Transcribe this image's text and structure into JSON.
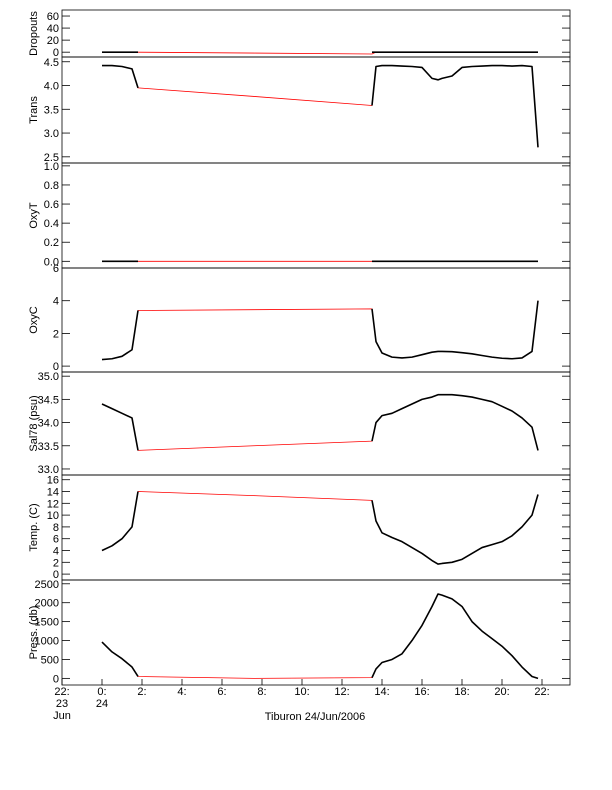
{
  "chart_data": [
    {
      "type": "line",
      "ylabel": "Dropouts",
      "xlim": [
        -2,
        23.4
      ],
      "ylim": [
        -8,
        70
      ],
      "yticks": [
        0,
        20,
        40,
        60
      ],
      "x": [
        0,
        0.5,
        1,
        1.5,
        1.8,
        7.6,
        13.5,
        13.7,
        14,
        14.5,
        15,
        15.5,
        16,
        16.5,
        16.8,
        17,
        17.5,
        18,
        18.5,
        19,
        19.5,
        20,
        20.5,
        21,
        21.5,
        21.8
      ],
      "series": [
        {
          "color": "#ff0000",
          "values": [
            0,
            0,
            0,
            0,
            0,
            -1.5,
            -3,
            0,
            0,
            0,
            0,
            0,
            0,
            0,
            0,
            0,
            0,
            0,
            0,
            0,
            0,
            0,
            0,
            0,
            0,
            0
          ]
        },
        {
          "color": "#000000",
          "values": [
            0,
            0,
            0,
            0,
            0,
            null,
            0,
            0,
            0,
            0,
            0,
            0,
            0,
            0,
            0,
            0,
            0,
            0,
            0,
            0,
            0,
            0,
            0,
            0,
            0,
            0
          ]
        }
      ]
    },
    {
      "type": "line",
      "ylabel": "Trans",
      "xlim": [
        -2,
        23.4
      ],
      "ylim": [
        2.37,
        4.6
      ],
      "yticks": [
        2.5,
        {
          "value": 3,
          "label": "3.0"
        },
        3.5,
        {
          "value": 4,
          "label": "4.0"
        },
        4.5
      ],
      "x": [
        0,
        0.5,
        1,
        1.5,
        1.8,
        7.6,
        13.5,
        13.7,
        14,
        14.5,
        15,
        15.5,
        16,
        16.5,
        16.8,
        17,
        17.5,
        18,
        18.5,
        19,
        19.5,
        20,
        20.5,
        21,
        21.5,
        21.8
      ],
      "series": [
        {
          "color": "#ff0000",
          "values": [
            4.42,
            4.42,
            4.4,
            4.35,
            3.95,
            3.77,
            3.58,
            4.4,
            4.42,
            4.42,
            4.41,
            4.4,
            4.38,
            4.15,
            4.12,
            4.15,
            4.2,
            4.38,
            4.4,
            4.41,
            4.42,
            4.42,
            4.41,
            4.42,
            4.4,
            2.7
          ]
        },
        {
          "color": "#000000",
          "values": [
            4.42,
            4.42,
            4.4,
            4.35,
            3.95,
            null,
            3.58,
            4.4,
            4.42,
            4.42,
            4.41,
            4.4,
            4.38,
            4.15,
            4.12,
            4.15,
            4.2,
            4.38,
            4.4,
            4.41,
            4.42,
            4.42,
            4.41,
            4.42,
            4.4,
            2.7
          ]
        }
      ]
    },
    {
      "type": "line",
      "ylabel": "OxyT",
      "xlim": [
        -2,
        23.4
      ],
      "ylim": [
        -0.07,
        1.03
      ],
      "yticks": [
        {
          "value": 0,
          "label": "0.0"
        },
        0.2,
        0.4,
        0.6,
        0.8,
        {
          "value": 1,
          "label": "1.0"
        }
      ],
      "x": [
        0,
        0.5,
        1,
        1.5,
        1.8,
        7.6,
        13.5,
        13.7,
        14,
        14.5,
        15,
        15.5,
        16,
        16.5,
        16.8,
        17,
        17.5,
        18,
        18.5,
        19,
        19.5,
        20,
        20.5,
        21,
        21.5,
        21.8
      ],
      "series": [
        {
          "color": "#ff0000",
          "values": [
            0,
            0,
            0,
            0,
            0,
            0,
            0,
            0,
            0,
            0,
            0,
            0,
            0,
            0,
            0,
            0,
            0,
            0,
            0,
            0,
            0,
            0,
            0,
            0,
            0,
            0
          ]
        },
        {
          "color": "#000000",
          "values": [
            0,
            0,
            0,
            0,
            0,
            null,
            0,
            0,
            0,
            0,
            0,
            0,
            0,
            0,
            0,
            0,
            0,
            0,
            0,
            0,
            0,
            0,
            0,
            0,
            0,
            0
          ]
        }
      ]
    },
    {
      "type": "line",
      "ylabel": "OxyC",
      "xlim": [
        -2,
        23.4
      ],
      "ylim": [
        -0.36,
        6
      ],
      "yticks": [
        0,
        2,
        4,
        6
      ],
      "x": [
        0,
        0.5,
        1,
        1.5,
        1.8,
        7.6,
        13.5,
        13.7,
        14,
        14.5,
        15,
        15.5,
        16,
        16.5,
        16.8,
        17,
        17.5,
        18,
        18.5,
        19,
        19.5,
        20,
        20.5,
        21,
        21.5,
        21.8
      ],
      "series": [
        {
          "color": "#ff0000",
          "values": [
            0.4,
            0.45,
            0.6,
            1.0,
            3.4,
            3.45,
            3.5,
            1.5,
            0.8,
            0.55,
            0.5,
            0.55,
            0.7,
            0.85,
            0.9,
            0.9,
            0.88,
            0.82,
            0.75,
            0.65,
            0.55,
            0.48,
            0.45,
            0.5,
            0.9,
            4.0
          ]
        },
        {
          "color": "#000000",
          "values": [
            0.4,
            0.45,
            0.6,
            1.0,
            3.4,
            null,
            3.5,
            1.5,
            0.8,
            0.55,
            0.5,
            0.55,
            0.7,
            0.85,
            0.9,
            0.9,
            0.88,
            0.82,
            0.75,
            0.65,
            0.55,
            0.48,
            0.45,
            0.5,
            0.9,
            4.0
          ]
        }
      ]
    },
    {
      "type": "line",
      "ylabel": "Sal78 (psu)",
      "xlim": [
        -2,
        23.4
      ],
      "ylim": [
        32.87,
        35.09
      ],
      "yticks": [
        {
          "value": 33,
          "label": "33.0"
        },
        33.5,
        {
          "value": 34,
          "label": "34.0"
        },
        34.5,
        {
          "value": 35,
          "label": "35.0"
        }
      ],
      "x": [
        0,
        0.5,
        1,
        1.5,
        1.8,
        7.6,
        13.5,
        13.7,
        14,
        14.5,
        15,
        15.5,
        16,
        16.5,
        16.8,
        17,
        17.5,
        18,
        18.5,
        19,
        19.5,
        20,
        20.5,
        21,
        21.5,
        21.8
      ],
      "series": [
        {
          "color": "#ff0000",
          "values": [
            34.4,
            34.3,
            34.2,
            34.1,
            33.4,
            33.5,
            33.6,
            34.0,
            34.15,
            34.2,
            34.3,
            34.4,
            34.5,
            34.55,
            34.6,
            34.6,
            34.6,
            34.58,
            34.55,
            34.5,
            34.45,
            34.35,
            34.25,
            34.1,
            33.9,
            33.4
          ]
        },
        {
          "color": "#000000",
          "values": [
            34.4,
            34.3,
            34.2,
            34.1,
            33.4,
            null,
            33.6,
            34.0,
            34.15,
            34.2,
            34.3,
            34.4,
            34.5,
            34.55,
            34.6,
            34.6,
            34.6,
            34.58,
            34.55,
            34.5,
            34.45,
            34.35,
            34.25,
            34.1,
            33.9,
            33.4
          ]
        }
      ]
    },
    {
      "type": "line",
      "ylabel": "Temp. (C)",
      "xlim": [
        -2,
        23.4
      ],
      "ylim": [
        -1,
        16.8
      ],
      "yticks": [
        0,
        2,
        4,
        6,
        8,
        10,
        12,
        14,
        16
      ],
      "x": [
        0,
        0.5,
        1,
        1.5,
        1.8,
        7.6,
        13.5,
        13.7,
        14,
        14.5,
        15,
        15.5,
        16,
        16.5,
        16.8,
        17,
        17.5,
        18,
        18.5,
        19,
        19.5,
        20,
        20.5,
        21,
        21.5,
        21.8
      ],
      "series": [
        {
          "color": "#ff0000",
          "values": [
            4.0,
            4.8,
            6,
            8,
            14,
            13.3,
            12.5,
            9,
            7,
            6.2,
            5.5,
            4.5,
            3.5,
            2.3,
            1.7,
            1.8,
            2.0,
            2.5,
            3.5,
            4.5,
            5.0,
            5.5,
            6.5,
            8,
            10,
            13.5
          ]
        },
        {
          "color": "#000000",
          "values": [
            4.0,
            4.8,
            6,
            8,
            14,
            null,
            12.5,
            9,
            7,
            6.2,
            5.5,
            4.5,
            3.5,
            2.3,
            1.7,
            1.8,
            2.0,
            2.5,
            3.5,
            4.5,
            5.0,
            5.5,
            6.5,
            8,
            10,
            13.5
          ]
        }
      ]
    },
    {
      "type": "line",
      "ylabel": "Press. (db)",
      "xlabel": "Tiburon 24/Jun/2006",
      "xlim": [
        -2,
        23.4
      ],
      "ylim": [
        -175,
        2600
      ],
      "yticks": [
        0,
        500,
        1000,
        1500,
        2000,
        2500
      ],
      "xticks": [
        {
          "value": -2,
          "label": "22:\n23\nJun"
        },
        {
          "value": 0,
          "label": "0:\n24"
        },
        {
          "value": 2,
          "label": "2:"
        },
        {
          "value": 4,
          "label": "4:"
        },
        {
          "value": 6,
          "label": "6:"
        },
        {
          "value": 8,
          "label": "8:"
        },
        {
          "value": 10,
          "label": "10:"
        },
        {
          "value": 12,
          "label": "12:"
        },
        {
          "value": 14,
          "label": "14:"
        },
        {
          "value": 16,
          "label": "16:"
        },
        {
          "value": 18,
          "label": "18:"
        },
        {
          "value": 20,
          "label": "20:"
        },
        {
          "value": 22,
          "label": "22:"
        }
      ],
      "x": [
        0,
        0.5,
        1,
        1.5,
        1.8,
        7.6,
        13.5,
        13.7,
        14,
        14.5,
        15,
        15.5,
        16,
        16.5,
        16.8,
        17,
        17.5,
        18,
        18.5,
        19,
        19.5,
        20,
        20.5,
        21,
        21.5,
        21.8
      ],
      "series": [
        {
          "color": "#ff0000",
          "values": [
            960,
            700,
            520,
            300,
            50,
            0,
            20,
            250,
            420,
            500,
            650,
            1000,
            1400,
            1900,
            2230,
            2200,
            2100,
            1900,
            1500,
            1250,
            1050,
            850,
            600,
            300,
            50,
            0
          ]
        },
        {
          "color": "#000000",
          "values": [
            960,
            700,
            520,
            300,
            50,
            null,
            20,
            250,
            420,
            500,
            650,
            1000,
            1400,
            1900,
            2230,
            2200,
            2100,
            1900,
            1500,
            1250,
            1050,
            850,
            600,
            300,
            50,
            0
          ]
        }
      ]
    }
  ]
}
